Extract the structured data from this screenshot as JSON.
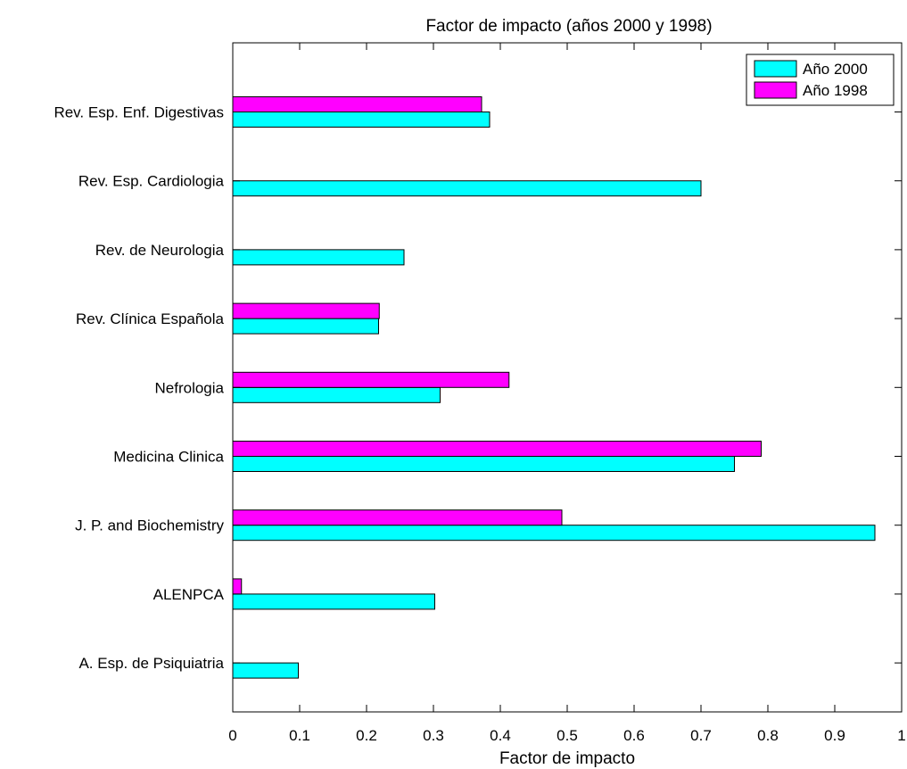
{
  "chart_data": {
    "type": "bar",
    "orientation": "horizontal",
    "title": "Factor de impacto (años 2000 y 1998)",
    "xlabel": "Factor de impacto",
    "ylabel": "",
    "xlim": [
      0,
      1
    ],
    "xticks": [
      "0",
      "0.1",
      "0.2",
      "0.3",
      "0.4",
      "0.5",
      "0.6",
      "0.7",
      "0.8",
      "0.9",
      "1"
    ],
    "grid": false,
    "legend_position": "top-right",
    "categories": [
      "Rev. Esp.  Enf. Digestivas",
      "Rev. Esp.  Cardiologia",
      "Rev. de Neurologia",
      "Rev. Clínica Española",
      "Nefrologia",
      "Medicina Clinica",
      "J. P. and Biochemistry",
      "ALENPCA",
      "A. Esp. de Psiquiatria"
    ],
    "series": [
      {
        "name": "Año 2000",
        "color": "#00ffff",
        "values": [
          0.384,
          0.7,
          0.256,
          0.218,
          0.31,
          0.75,
          0.96,
          0.302,
          0.098
        ]
      },
      {
        "name": "Año 1998",
        "color": "#ff00ff",
        "values": [
          0.372,
          0,
          0,
          0.219,
          0.413,
          0.79,
          0.492,
          0.013,
          0
        ]
      }
    ]
  }
}
